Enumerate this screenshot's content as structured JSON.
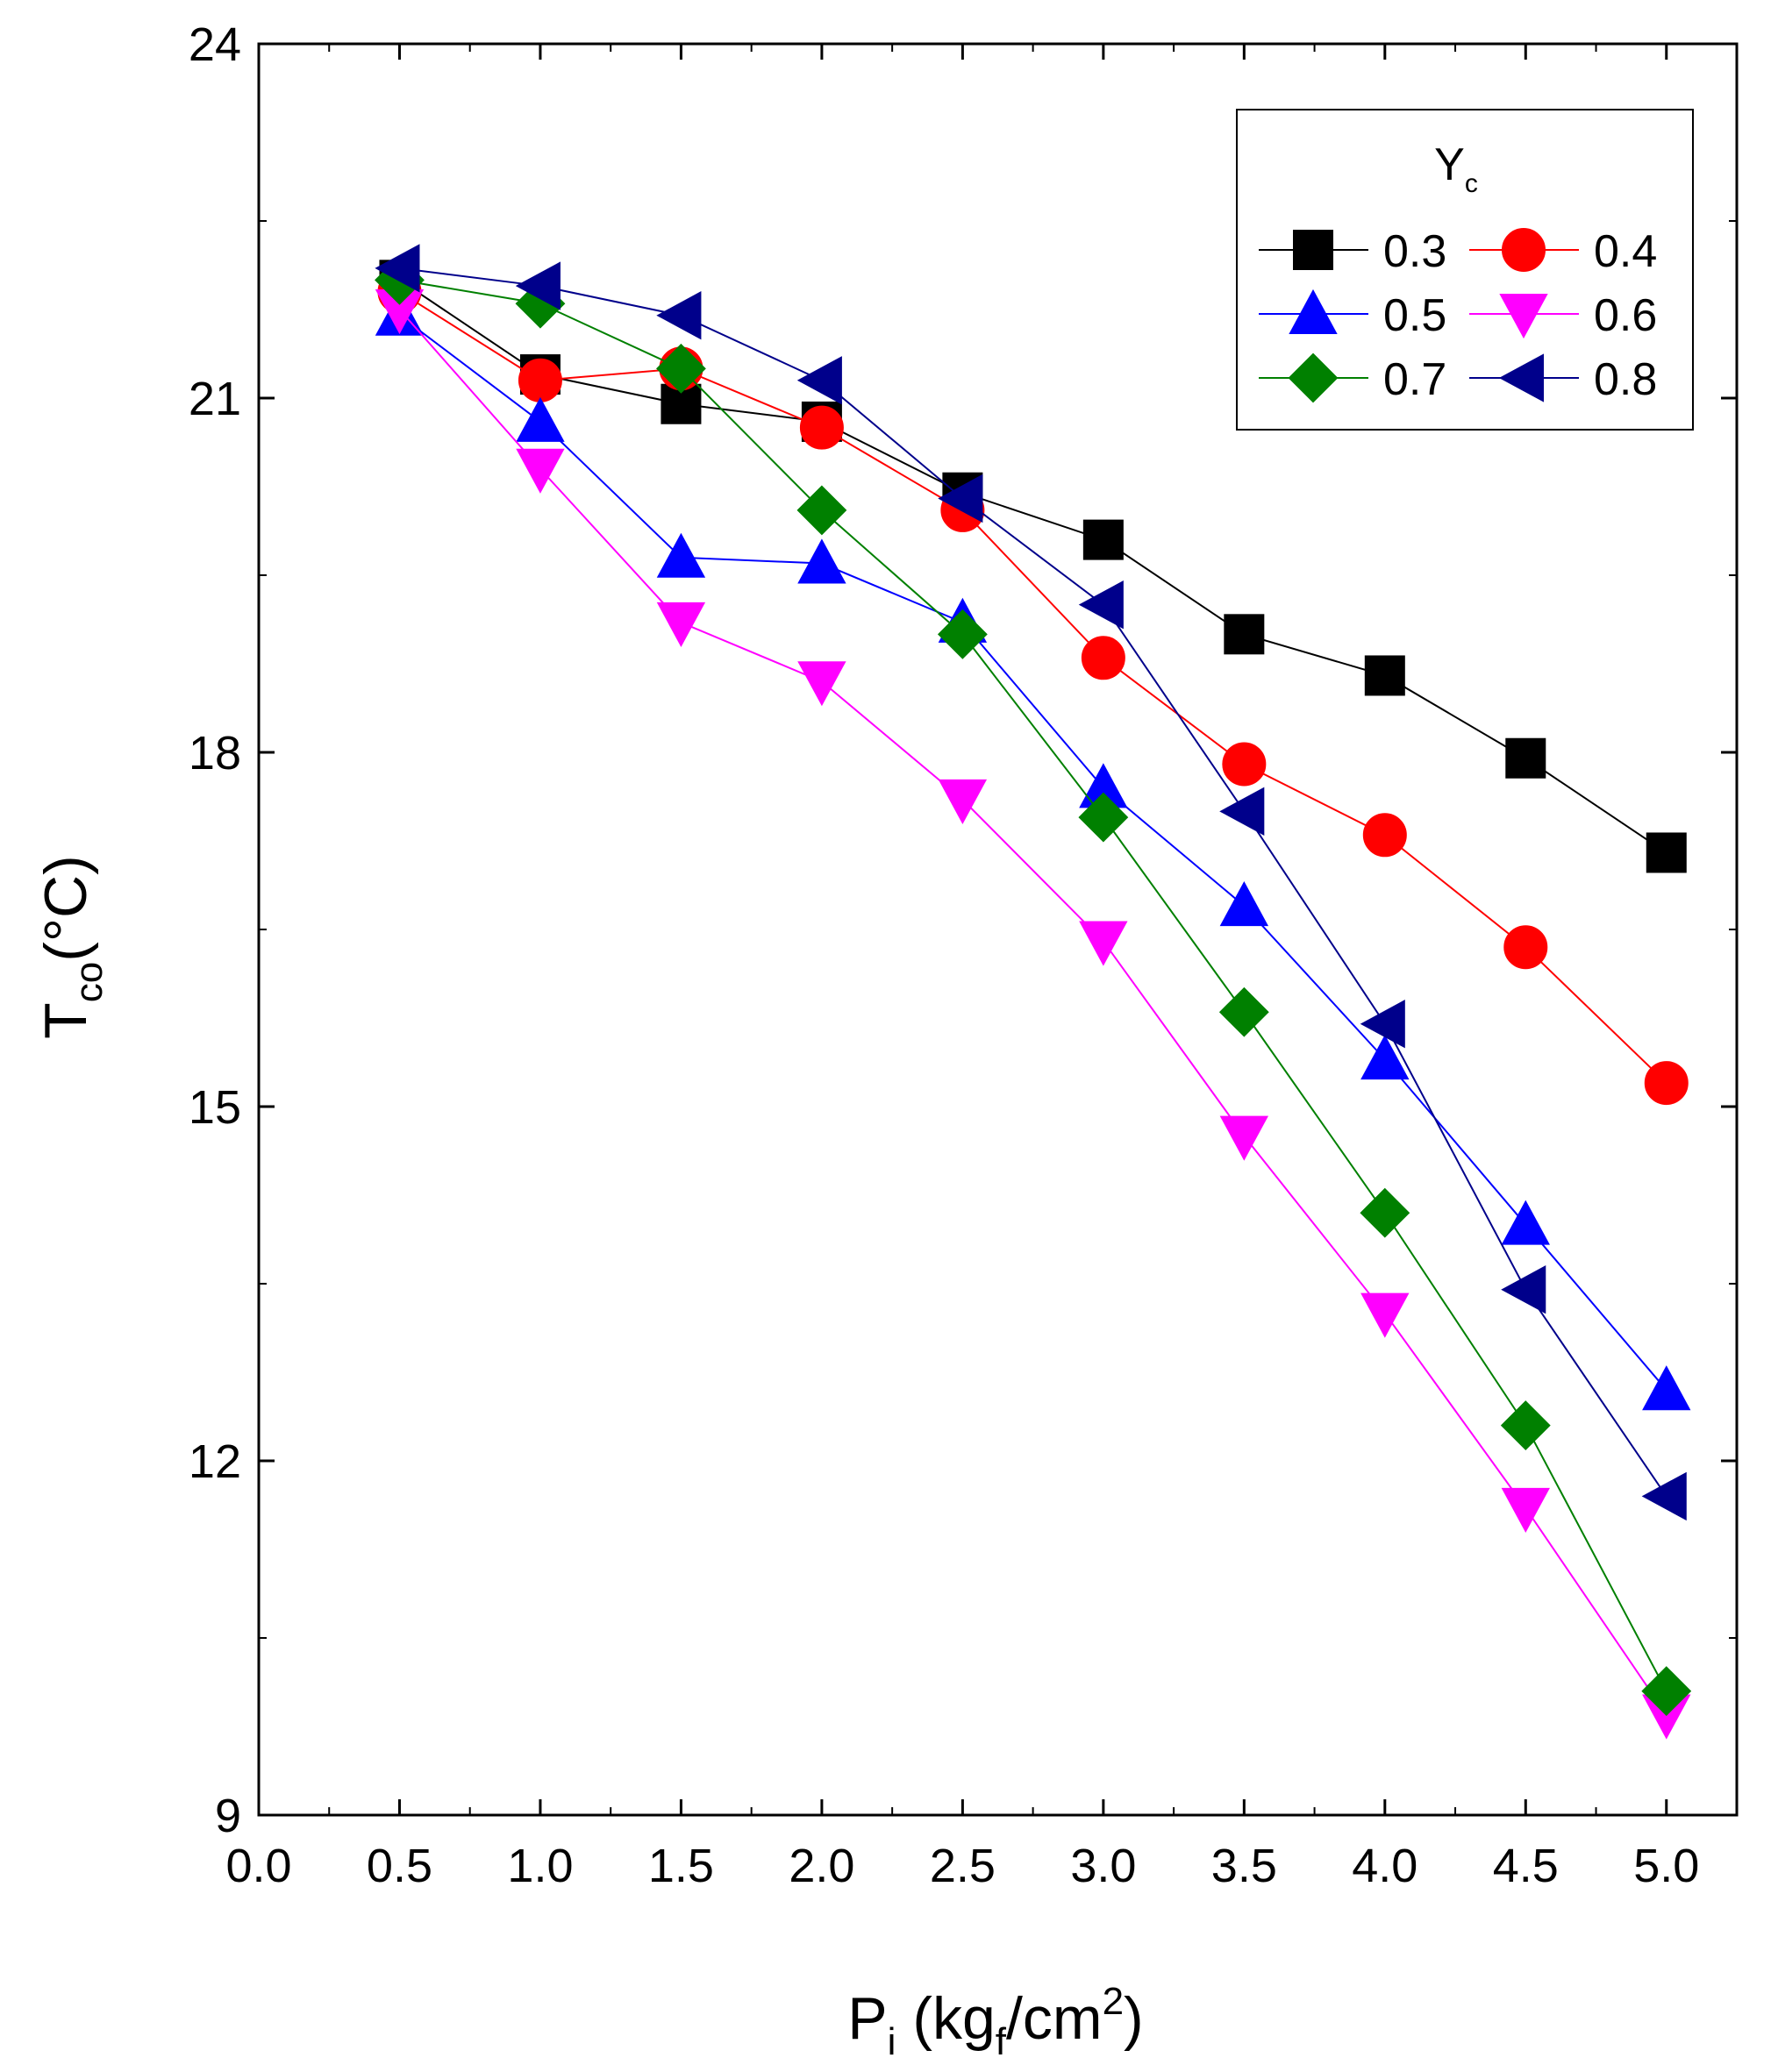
{
  "chart_data": {
    "type": "line",
    "title": "",
    "xlabel": {
      "base": "P",
      "sub": "i",
      "open": " (kg",
      "sub2": "f",
      "mid": "/cm",
      "sup": "2",
      "close": ")"
    },
    "ylabel": {
      "base": "T",
      "sub": "co",
      "rest": "(°C)"
    },
    "xlim": [
      0.0,
      5.25
    ],
    "ylim": [
      9,
      24
    ],
    "xticks": [
      0.0,
      0.5,
      1.0,
      1.5,
      2.0,
      2.5,
      3.0,
      3.5,
      4.0,
      4.5,
      5.0
    ],
    "xtick_labels": [
      "0.0",
      "0.5",
      "1.0",
      "1.5",
      "2.0",
      "2.5",
      "3.0",
      "3.5",
      "4.0",
      "4.5",
      "5.0"
    ],
    "yticks": [
      9,
      12,
      15,
      18,
      21,
      24
    ],
    "ytick_labels": [
      "9",
      "12",
      "15",
      "18",
      "21",
      "24"
    ],
    "grid": false,
    "legend": {
      "title_base": "Y",
      "title_sub": "c",
      "position": "top-right"
    },
    "x": [
      0.5,
      1.0,
      1.5,
      2.0,
      2.5,
      3.0,
      3.5,
      4.0,
      4.5,
      5.0
    ],
    "series": [
      {
        "name": "0.3",
        "color": "#000000",
        "marker": "square",
        "values": [
          22.0,
          21.2,
          20.95,
          20.8,
          20.2,
          19.8,
          19.0,
          18.65,
          17.95,
          17.15
        ]
      },
      {
        "name": "0.4",
        "color": "#ff0000",
        "marker": "circle",
        "values": [
          21.9,
          21.15,
          21.25,
          20.75,
          20.05,
          18.8,
          17.9,
          17.3,
          16.35,
          15.2
        ]
      },
      {
        "name": "0.5",
        "color": "#0000ff",
        "marker": "triangle-up",
        "values": [
          21.7,
          20.8,
          19.65,
          19.6,
          19.1,
          17.7,
          16.7,
          15.4,
          14.0,
          12.6
        ]
      },
      {
        "name": "0.6",
        "color": "#ff00ff",
        "marker": "triangle-down",
        "values": [
          21.75,
          20.4,
          19.1,
          18.6,
          17.6,
          16.4,
          14.75,
          13.25,
          11.6,
          9.85
        ]
      },
      {
        "name": "0.7",
        "color": "#008000",
        "marker": "diamond",
        "values": [
          22.0,
          21.8,
          21.25,
          20.05,
          19.0,
          17.45,
          15.8,
          14.1,
          12.3,
          10.05
        ]
      },
      {
        "name": "0.8",
        "color": "#00008b",
        "marker": "triangle-left",
        "values": [
          22.1,
          21.95,
          21.7,
          21.15,
          20.15,
          19.25,
          17.5,
          15.7,
          13.45,
          11.7
        ]
      }
    ]
  }
}
